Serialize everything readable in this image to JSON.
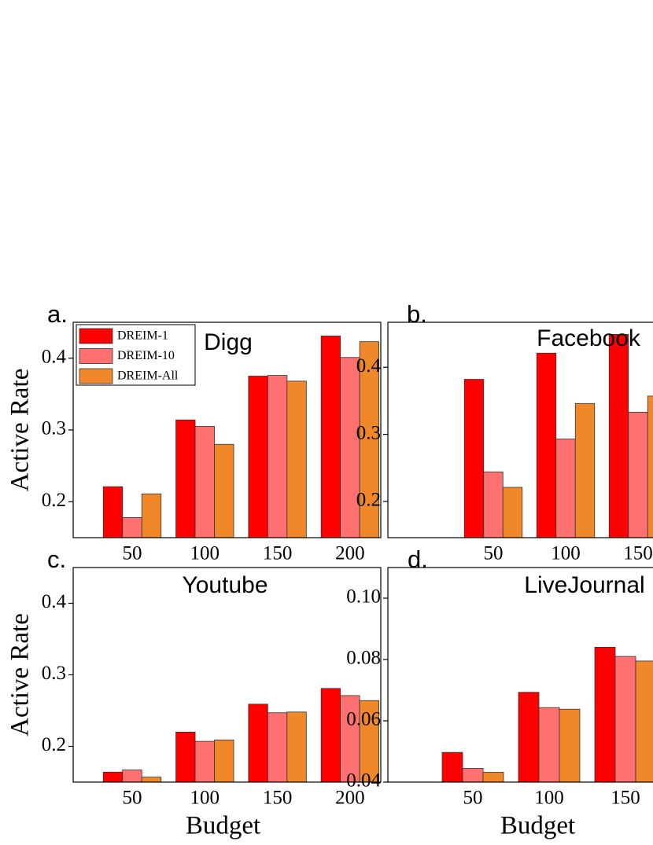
{
  "chart_data": [
    {
      "type": "bar",
      "panel_label": "a.",
      "title": "Digg",
      "ylabel": "Active Rate",
      "legend": "upper left",
      "categories": [
        "50",
        "100",
        "150",
        "200"
      ],
      "series": [
        {
          "name": "DREIM-1",
          "color": "#ff0000",
          "values": [
            0.221,
            0.314,
            0.375,
            0.431
          ]
        },
        {
          "name": "DREIM-10",
          "color": "#ff7070",
          "values": [
            0.178,
            0.305,
            0.376,
            0.401
          ]
        },
        {
          "name": "DREIM-All",
          "color": "#f0882a",
          "values": [
            0.211,
            0.28,
            0.368,
            0.423
          ]
        }
      ],
      "ylim": [
        0.15,
        0.45
      ],
      "yticks": [
        0.2,
        0.3,
        0.4
      ]
    },
    {
      "type": "bar",
      "panel_label": "b.",
      "title": "Facebook",
      "categories": [
        "50",
        "100",
        "150"
      ],
      "series": [
        {
          "name": "DREIM-1",
          "color": "#ff0000",
          "values": [
            0.382,
            0.421,
            0.449
          ]
        },
        {
          "name": "DREIM-10",
          "color": "#ff7070",
          "values": [
            0.244,
            0.293,
            0.333
          ]
        },
        {
          "name": "DREIM-All",
          "color": "#f0882a",
          "values": [
            0.221,
            0.346,
            0.357
          ]
        }
      ],
      "ylim": [
        0.146,
        0.467
      ],
      "yticks": [
        0.2,
        0.3,
        0.4
      ]
    },
    {
      "type": "bar",
      "panel_label": "c.",
      "title": "Youtube",
      "ylabel": "Active Rate",
      "xlabel": "Budget",
      "categories": [
        "50",
        "100",
        "150",
        "200"
      ],
      "series": [
        {
          "name": "DREIM-1",
          "color": "#ff0000",
          "values": [
            0.164,
            0.22,
            0.259,
            0.281
          ]
        },
        {
          "name": "DREIM-10",
          "color": "#ff7070",
          "values": [
            0.167,
            0.207,
            0.247,
            0.271
          ]
        },
        {
          "name": "DREIM-All",
          "color": "#f0882a",
          "values": [
            0.157,
            0.209,
            0.248,
            0.264
          ]
        }
      ],
      "ylim": [
        0.15,
        0.45
      ],
      "yticks": [
        0.2,
        0.3,
        0.4
      ]
    },
    {
      "type": "bar",
      "panel_label": "d.",
      "title": "LiveJournal",
      "xlabel": "Budget",
      "categories": [
        "50",
        "100",
        "150"
      ],
      "series": [
        {
          "name": "DREIM-1",
          "color": "#ff0000",
          "values": [
            0.0497,
            0.0693,
            0.084
          ]
        },
        {
          "name": "DREIM-10",
          "color": "#ff7070",
          "values": [
            0.0445,
            0.0643,
            0.081
          ]
        },
        {
          "name": "DREIM-All",
          "color": "#f0882a",
          "values": [
            0.0432,
            0.0638,
            0.0795
          ]
        }
      ],
      "ylim": [
        0.04,
        0.11
      ],
      "yticks": [
        0.04,
        0.06,
        0.08,
        {
          "value": 0.1,
          "label": "0.10"
        }
      ]
    }
  ]
}
